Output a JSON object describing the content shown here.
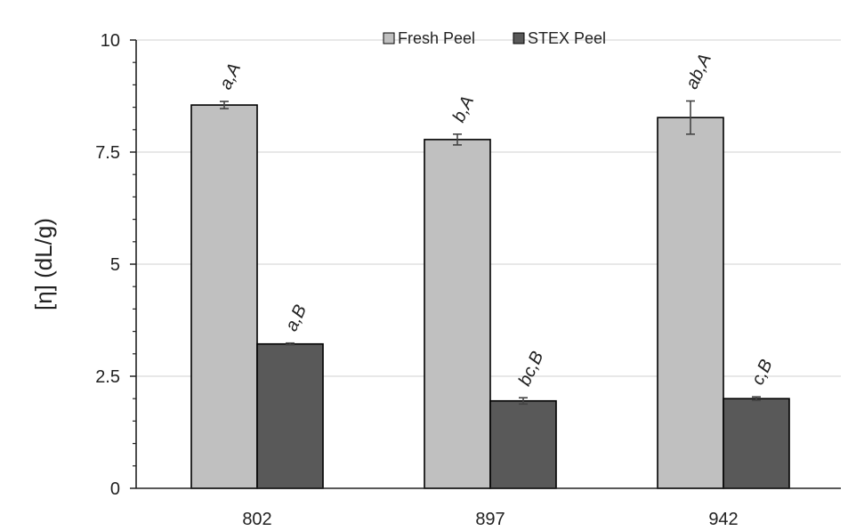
{
  "chart_data": {
    "type": "bar",
    "title": "",
    "xlabel": "",
    "ylabel": "[η] (dL/g)",
    "ylim": [
      0,
      10
    ],
    "yticks": [
      0,
      2.5,
      5,
      7.5,
      10
    ],
    "ytick_labels": [
      "0",
      "2.5",
      "5",
      "7.5",
      "10"
    ],
    "categories": [
      "802",
      "897",
      "942"
    ],
    "series": [
      {
        "name": "Fresh Peel",
        "color": "#c0c0c0",
        "values": [
          8.55,
          7.78,
          8.27
        ],
        "errors": [
          0.08,
          0.12,
          0.37
        ],
        "labels": [
          "a,A",
          "b,A",
          "ab,A"
        ]
      },
      {
        "name": "STEX Peel",
        "color": "#595959",
        "values": [
          3.22,
          1.95,
          2.0
        ],
        "errors": [
          0.02,
          0.07,
          0.04
        ],
        "labels": [
          "a,B",
          "bc,B",
          "c,B"
        ]
      }
    ],
    "grid": true,
    "legend_position": "top"
  }
}
